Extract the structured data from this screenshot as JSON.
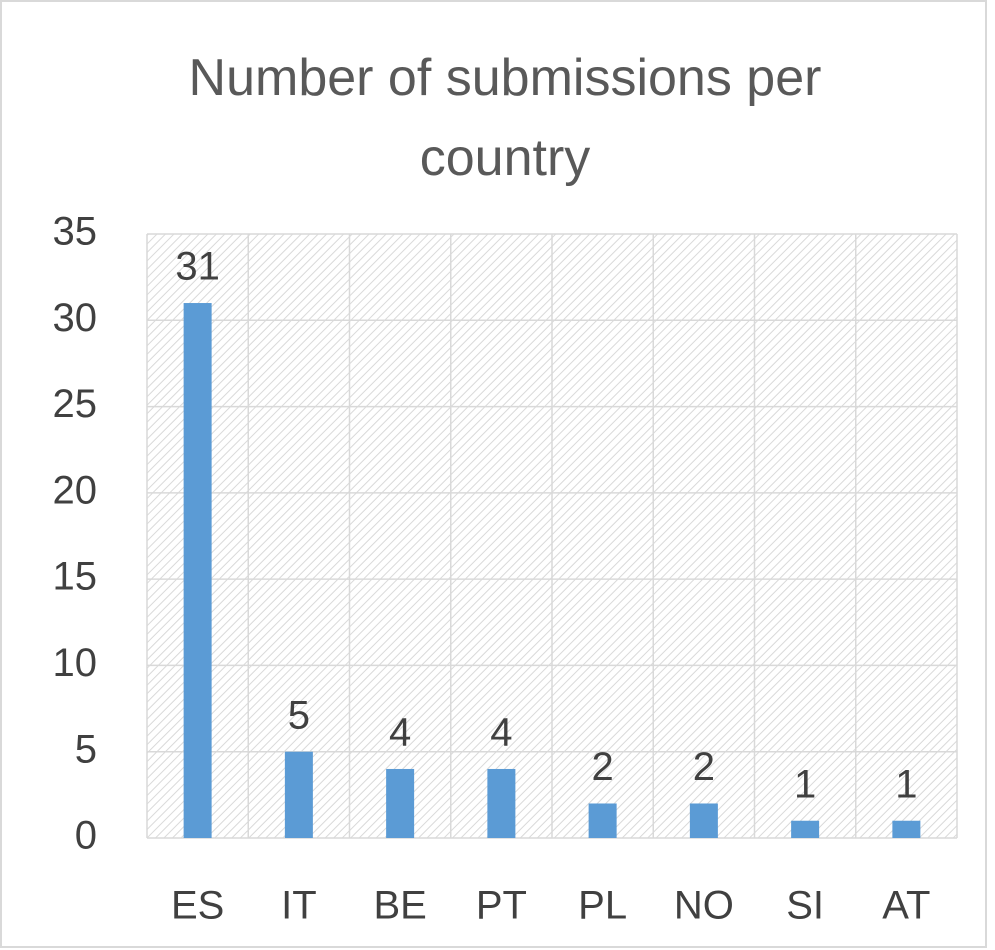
{
  "chart_data": {
    "type": "bar",
    "title": "Number of submissions per country",
    "categories": [
      "ES",
      "IT",
      "BE",
      "PT",
      "PL",
      "NO",
      "SI",
      "AT"
    ],
    "values": [
      31,
      5,
      4,
      4,
      2,
      2,
      1,
      1
    ],
    "color": "#5b9bd5",
    "ylim": [
      0,
      35
    ],
    "yticks": [
      0,
      5,
      10,
      15,
      20,
      25,
      30,
      35
    ],
    "grid": true
  }
}
